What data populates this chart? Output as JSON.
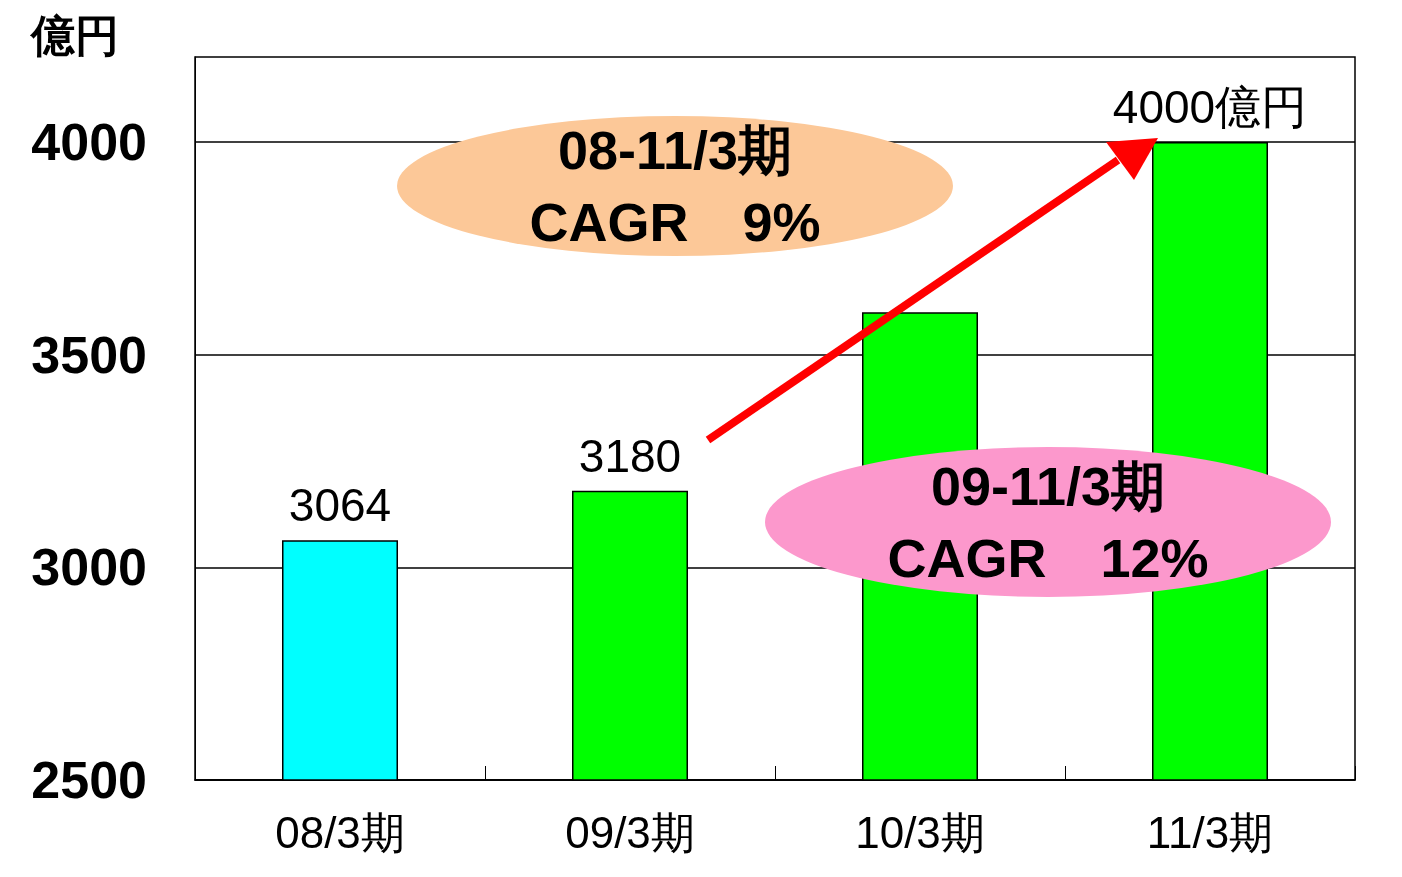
{
  "chart_data": {
    "type": "bar",
    "ylabel": "億円",
    "categories": [
      "08/3期",
      "09/3期",
      "10/3期",
      "11/3期"
    ],
    "values": [
      3064,
      3180,
      3600,
      4000
    ],
    "colors": [
      "#00ffff",
      "#00ff00",
      "#00ff00",
      "#00ff00"
    ],
    "value_labels": [
      "3064",
      "3180",
      null,
      "4000億円"
    ],
    "ylim": [
      2500,
      4200
    ],
    "yticks": [
      2500,
      3000,
      3500,
      4000
    ],
    "grid": "y",
    "annotations": [
      "08-11/3期\nCAGR　9%",
      "09-11/3期\nCAGR　12%"
    ]
  }
}
